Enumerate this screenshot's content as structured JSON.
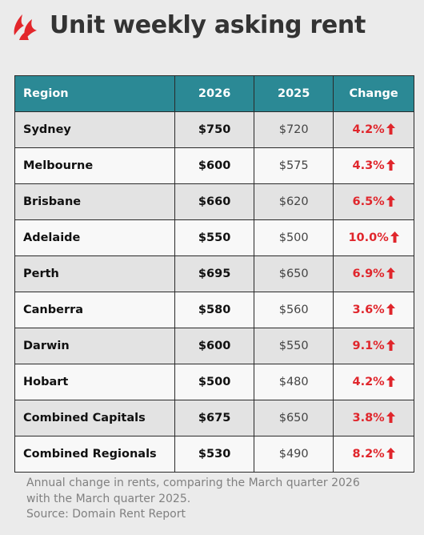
{
  "header": {
    "title": "Unit weekly asking rent"
  },
  "table": {
    "columns": [
      "Region",
      "2026",
      "2025",
      "Change"
    ],
    "rows": [
      [
        "Sydney",
        "$750",
        "$720",
        "4.2%"
      ],
      [
        "Melbourne",
        "$600",
        "$575",
        "4.3%"
      ],
      [
        "Brisbane",
        "$660",
        "$620",
        "6.5%"
      ],
      [
        "Adelaide",
        "$550",
        "$500",
        "10.0%"
      ],
      [
        "Perth",
        "$695",
        "$650",
        "6.9%"
      ],
      [
        "Canberra",
        "$580",
        "$560",
        "3.6%"
      ],
      [
        "Darwin",
        "$600",
        "$550",
        "9.1%"
      ],
      [
        "Hobart",
        "$500",
        "$480",
        "4.2%"
      ],
      [
        "Combined Capitals",
        "$675",
        "$650",
        "3.8%"
      ],
      [
        "Combined Regionals",
        "$530",
        "$490",
        "8.2%"
      ]
    ]
  },
  "footer": {
    "note": "Annual change in rents, comparing the March quarter 2026 with the March quarter 2025.",
    "source": "Source: Domain Rent Report"
  }
}
